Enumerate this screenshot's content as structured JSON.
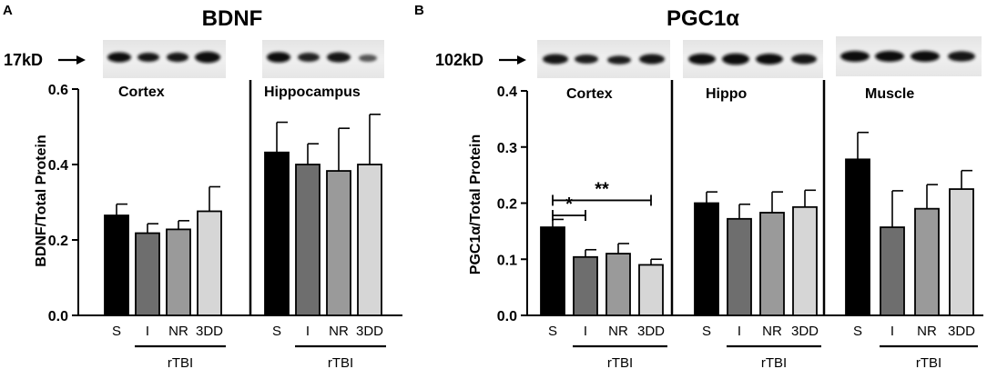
{
  "panels": [
    {
      "letter": "A",
      "title": "BDNF",
      "kd_label": "17kD",
      "ylabel": "BDNF/Total Protein",
      "ylim": [
        0,
        0.6
      ],
      "yticks": [
        "0.0",
        "0.2",
        "0.4",
        "0.6"
      ],
      "categories": [
        "S",
        "I",
        "NR",
        "3DD"
      ],
      "group_label": "rTBI",
      "regions": [
        {
          "name": "Cortex",
          "values": [
            0.265,
            0.218,
            0.228,
            0.276
          ],
          "errors": [
            0.03,
            0.025,
            0.023,
            0.065
          ]
        },
        {
          "name": "Hippocampus",
          "values": [
            0.432,
            0.4,
            0.383,
            0.4
          ],
          "errors": [
            0.08,
            0.055,
            0.113,
            0.133
          ]
        }
      ]
    },
    {
      "letter": "B",
      "title": "PGC1α",
      "kd_label": "102kD",
      "ylabel": "PGC1α/Total  Protein",
      "ylim": [
        0,
        0.4
      ],
      "yticks": [
        "0.0",
        "0.1",
        "0.2",
        "0.3",
        "0.4"
      ],
      "categories": [
        "S",
        "I",
        "NR",
        "3DD"
      ],
      "group_label": "rTBI",
      "regions": [
        {
          "name": "Cortex",
          "values": [
            0.157,
            0.104,
            0.11,
            0.09
          ],
          "errors": [
            0.014,
            0.013,
            0.018,
            0.01
          ]
        },
        {
          "name": "Hippo",
          "values": [
            0.2,
            0.172,
            0.183,
            0.193
          ],
          "errors": [
            0.02,
            0.026,
            0.037,
            0.03
          ]
        },
        {
          "name": "Muscle",
          "values": [
            0.278,
            0.157,
            0.19,
            0.225
          ],
          "errors": [
            0.048,
            0.065,
            0.043,
            0.033
          ]
        }
      ],
      "significance": [
        {
          "label": "*",
          "from": 0,
          "to": 1
        },
        {
          "label": "**",
          "from": 0,
          "to": 3
        }
      ]
    }
  ],
  "chart_data": [
    {
      "type": "bar",
      "title": "BDNF",
      "ylabel": "BDNF/Total Protein",
      "ylim": [
        0,
        0.6
      ],
      "categories": [
        "S",
        "I",
        "NR",
        "3DD"
      ],
      "series": [
        {
          "name": "Cortex",
          "values": [
            0.265,
            0.218,
            0.228,
            0.276
          ]
        },
        {
          "name": "Hippocampus",
          "values": [
            0.432,
            0.4,
            0.383,
            0.4
          ]
        }
      ]
    },
    {
      "type": "bar",
      "title": "PGC1α",
      "ylabel": "PGC1α/Total  Protein",
      "ylim": [
        0,
        0.4
      ],
      "categories": [
        "S",
        "I",
        "NR",
        "3DD"
      ],
      "series": [
        {
          "name": "Cortex",
          "values": [
            0.157,
            0.104,
            0.11,
            0.09
          ]
        },
        {
          "name": "Hippo",
          "values": [
            0.2,
            0.172,
            0.183,
            0.193
          ]
        },
        {
          "name": "Muscle",
          "values": [
            0.278,
            0.157,
            0.19,
            0.225
          ]
        }
      ]
    }
  ],
  "colors": {
    "S": "#000000",
    "I": "#6e6e6e",
    "NR": "#9a9a9a",
    "3DD": "#d6d6d6"
  }
}
